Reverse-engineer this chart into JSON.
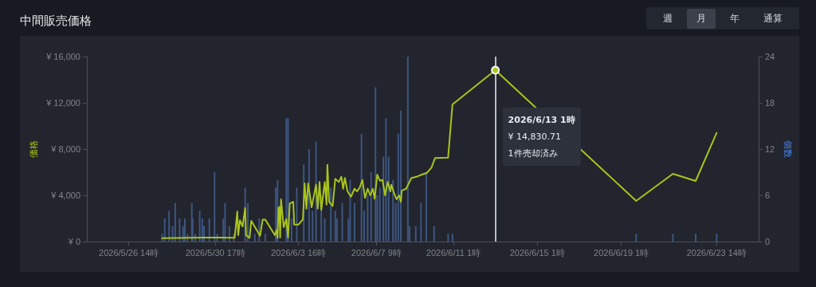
{
  "chart_data": {
    "type": "line",
    "title": "中間販売価格",
    "ylabel": "価格",
    "y2label": "個数",
    "annotations": [
      "週",
      "月",
      "年",
      "通算",
      "2026/6/13 1時\n¥ 14,830.71\n1件売却済み"
    ],
    "xlim": [
      "2026-05-24T14:00",
      "2026-06-25T14:00"
    ],
    "xticks": [
      {
        "value": "2026-05-26T14:00",
        "label": "2026/5/26 14時"
      },
      {
        "value": "2026-05-30T17:00",
        "label": "2026/5/30 17時"
      },
      {
        "value": "2026-06-03T16:00",
        "label": "2026/6/3 16時"
      },
      {
        "value": "2026-06-07T09:00",
        "label": "2026/6/7 9時"
      },
      {
        "value": "2026-06-11T01:00",
        "label": "2026/6/11 1時"
      },
      {
        "value": "2026-06-15T01:00",
        "label": "2026/6/15 1時"
      },
      {
        "value": "2026-06-19T01:00",
        "label": "2026/6/19 1時"
      },
      {
        "value": "2026-06-23T14:00",
        "label": "2026/6/23 14時"
      }
    ],
    "ylim": [
      0,
      16000
    ],
    "yticks": [
      {
        "value": 0,
        "label": "¥ 0"
      },
      {
        "value": 4000,
        "label": "¥ 4,000"
      },
      {
        "value": 8000,
        "label": "¥ 8,000"
      },
      {
        "value": 12000,
        "label": "¥ 12,000"
      },
      {
        "value": 16000,
        "label": "¥ 16,000"
      }
    ],
    "y2lim": [
      0,
      24
    ],
    "y2ticks": [
      0,
      6,
      12,
      18,
      24
    ],
    "grid": false,
    "marker": "none",
    "ref_lines": [
      {
        "axis": "x",
        "value": "2026-06-13T01:00",
        "color": "#b8bcc4"
      }
    ],
    "series": [
      {
        "type": "bar",
        "axis": "y2",
        "color": "#3d5580",
        "x": [
          "2026-05-28T04:00",
          "2026-05-28T07:00",
          "2026-05-28T12:00",
          "2026-05-28T16:00",
          "2026-05-28T19:00",
          "2026-05-29T00:00",
          "2026-05-29T04:00",
          "2026-05-29T06:00",
          "2026-05-29T09:00",
          "2026-05-29T14:00",
          "2026-05-29T15:00",
          "2026-05-29T18:00",
          "2026-05-29T23:00",
          "2026-05-30T02:00",
          "2026-05-30T04:00",
          "2026-05-30T10:00",
          "2026-05-30T16:00",
          "2026-05-30T19:00",
          "2026-05-31T02:00",
          "2026-05-31T04:00",
          "2026-05-31T09:00",
          "2026-05-31T14:00",
          "2026-05-31T20:00",
          "2026-06-01T03:00",
          "2026-06-01T06:00",
          "2026-06-01T14:00",
          "2026-06-01T19:00",
          "2026-06-02T02:00",
          "2026-06-02T14:00",
          "2026-06-02T16:00",
          "2026-06-02T22:00",
          "2026-06-03T02:00",
          "2026-06-03T04:00",
          "2026-06-03T08:00",
          "2026-06-03T14:00",
          "2026-06-03T22:00",
          "2026-06-04T04:00",
          "2026-06-04T08:00",
          "2026-06-04T12:00",
          "2026-06-04T18:00",
          "2026-06-04T22:00",
          "2026-06-05T05:00",
          "2026-06-05T10:00",
          "2026-06-05T12:00",
          "2026-06-05T18:00",
          "2026-06-06T01:00",
          "2026-06-06T03:00",
          "2026-06-06T08:00",
          "2026-06-06T16:00",
          "2026-06-06T19:00",
          "2026-06-06T23:00",
          "2026-06-07T03:00",
          "2026-06-07T08:00",
          "2026-06-07T10:00",
          "2026-06-07T13:00",
          "2026-06-07T17:00",
          "2026-06-07T20:00",
          "2026-06-07T23:00",
          "2026-06-08T04:00",
          "2026-06-08T07:00",
          "2026-06-08T10:00",
          "2026-06-08T13:00",
          "2026-06-08T21:00",
          "2026-06-08T23:00",
          "2026-06-09T06:00",
          "2026-06-09T12:00",
          "2026-06-09T18:00",
          "2026-06-10T03:00",
          "2026-06-10T19:00",
          "2026-06-11T00:00",
          "2026-06-13T01:00",
          "2026-06-19T18:00",
          "2026-06-21T12:00",
          "2026-06-22T14:00",
          "2026-06-23T14:00"
        ],
        "values": [
          1,
          3,
          4,
          2,
          5,
          3,
          2,
          3,
          1,
          5,
          3,
          1,
          4,
          3,
          2,
          3,
          9,
          1,
          3,
          5,
          2,
          1,
          null,
          7,
          5,
          1,
          3,
          1,
          7,
          8,
          null,
          16,
          16,
          3,
          7,
          10,
          12,
          4,
          13,
          6,
          3,
          7,
          4,
          3,
          5,
          3,
          8,
          5,
          14,
          4,
          6,
          9,
          20,
          6,
          7,
          11,
          16,
          11,
          8,
          5,
          14,
          17,
          24,
          2,
          2,
          5,
          9,
          2,
          1,
          1,
          null,
          1,
          1,
          1,
          1
        ]
      },
      {
        "color": "#a9c41c",
        "x": [
          "2026-05-28T04:00",
          "2026-05-30T16:00",
          "2026-05-31T15:00",
          "2026-05-31T18:00",
          "2026-05-31T19:00",
          "2026-05-31T21:00",
          "2026-06-01T00:00",
          "2026-06-01T03:00",
          "2026-06-01T04:00",
          "2026-06-01T08:00",
          "2026-06-01T10:00",
          "2026-06-01T20:00",
          "2026-06-01T23:00",
          "2026-06-02T02:00",
          "2026-06-02T13:00",
          "2026-06-02T15:00",
          "2026-06-02T16:00",
          "2026-06-02T17:00",
          "2026-06-02T18:00",
          "2026-06-02T19:00",
          "2026-06-02T20:00",
          "2026-06-02T23:00",
          "2026-06-03T02:00",
          "2026-06-03T04:00",
          "2026-06-03T06:00",
          "2026-06-03T10:00",
          "2026-06-03T11:00",
          "2026-06-03T16:00",
          "2026-06-03T21:00",
          "2026-06-03T23:00",
          "2026-06-04T01:00",
          "2026-06-04T03:00",
          "2026-06-04T07:00",
          "2026-06-04T12:00",
          "2026-06-04T14:00",
          "2026-06-04T16:00",
          "2026-06-04T18:00",
          "2026-06-04T22:00",
          "2026-06-05T00:00",
          "2026-06-05T01:00",
          "2026-06-05T03:00",
          "2026-06-05T07:00",
          "2026-06-05T10:00",
          "2026-06-05T14:00",
          "2026-06-05T17:00",
          "2026-06-05T19:00",
          "2026-06-05T21:00",
          "2026-06-06T00:00",
          "2026-06-06T04:00",
          "2026-06-06T08:00",
          "2026-06-06T11:00",
          "2026-06-06T14:00",
          "2026-06-06T17:00",
          "2026-06-06T20:00",
          "2026-06-06T23:00",
          "2026-06-07T02:00",
          "2026-06-07T05:00",
          "2026-06-07T07:00",
          "2026-06-07T10:00",
          "2026-06-07T13:00",
          "2026-06-07T16:00",
          "2026-06-07T19:00",
          "2026-06-07T22:00",
          "2026-06-08T01:00",
          "2026-06-08T02:00",
          "2026-06-08T05:00",
          "2026-06-08T08:00",
          "2026-06-08T11:00",
          "2026-06-08T13:00",
          "2026-06-08T14:00",
          "2026-06-08T19:00",
          "2026-06-09T01:00",
          "2026-06-09T07:00",
          "2026-06-09T13:00",
          "2026-06-09T19:00",
          "2026-06-10T00:00",
          "2026-06-10T04:00",
          "2026-06-10T19:00",
          "2026-06-11T00:00",
          "2026-06-13T01:00",
          "2026-06-19T18:00",
          "2026-06-21T12:00",
          "2026-06-22T14:00",
          "2026-06-23T14:00"
        ],
        "values": [
          300,
          350,
          330,
          2600,
          550,
          1850,
          1300,
          2900,
          550,
          320,
          1800,
          500,
          1900,
          1900,
          550,
          1000,
          320,
          2900,
          3000,
          350,
          3650,
          1250,
          1950,
          350,
          3300,
          3430,
          1470,
          1470,
          1930,
          5030,
          2850,
          5030,
          2960,
          4920,
          2850,
          5150,
          2740,
          5150,
          3190,
          6640,
          3430,
          3080,
          5430,
          5150,
          5610,
          4570,
          5500,
          4340,
          3880,
          4570,
          4340,
          4690,
          5330,
          3770,
          4570,
          4000,
          4570,
          3700,
          5790,
          5260,
          5330,
          4000,
          5150,
          4340,
          4920,
          4230,
          3660,
          4000,
          3430,
          4410,
          4570,
          5500,
          5610,
          5790,
          5950,
          6410,
          7220,
          7260,
          11860,
          14830.71,
          3520,
          5860,
          5240,
          9400
        ]
      }
    ]
  }
}
